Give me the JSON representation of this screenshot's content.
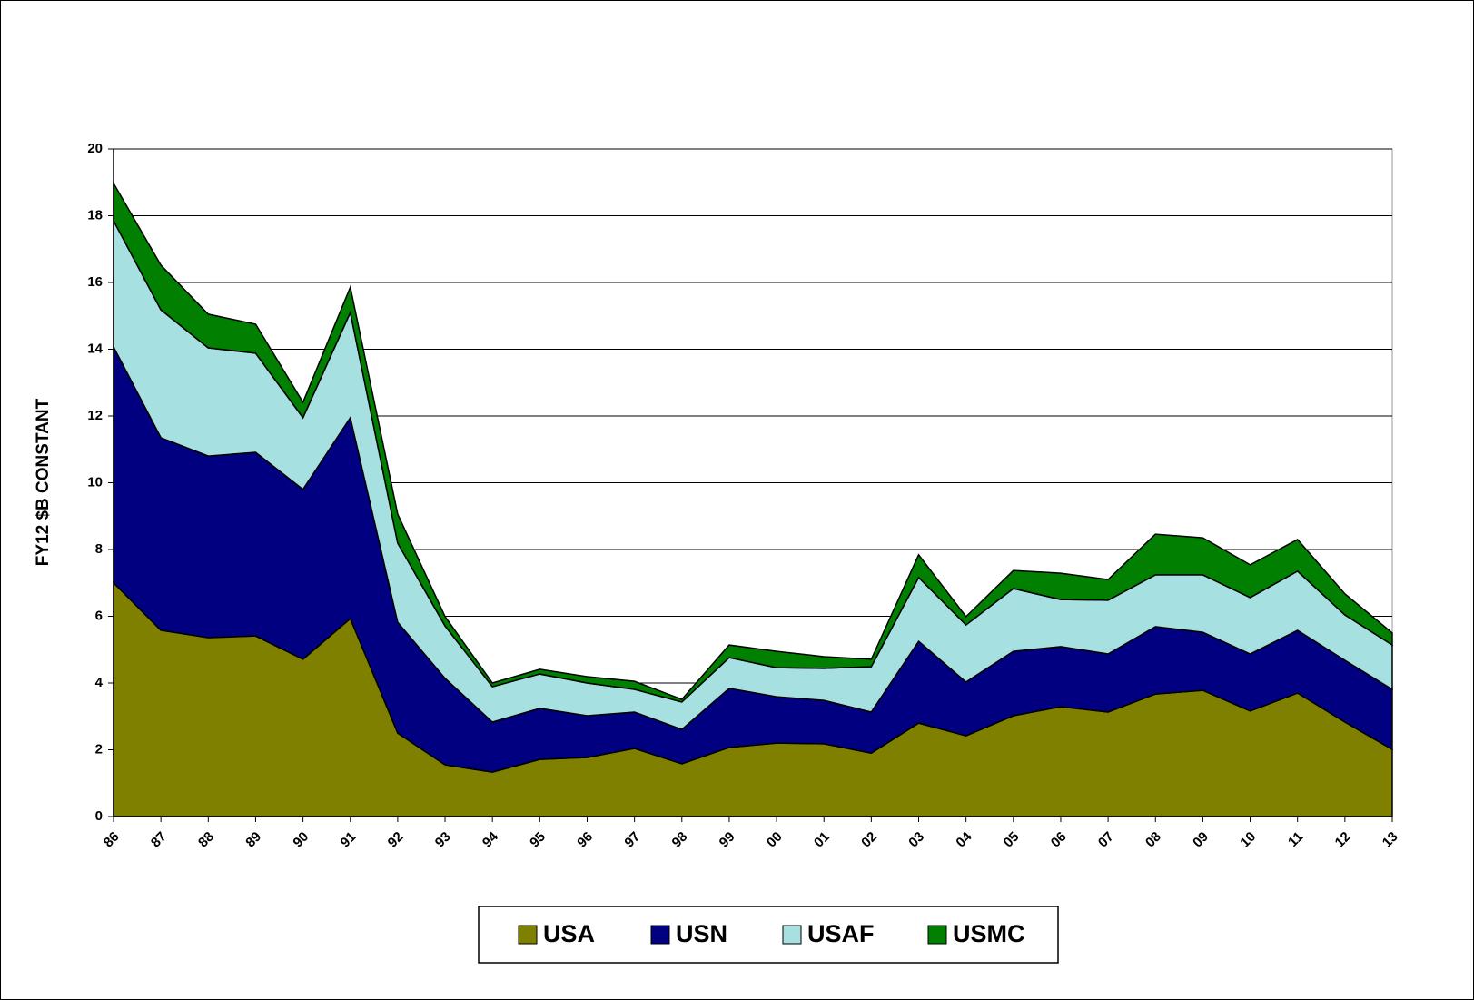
{
  "chart_data": {
    "type": "stacked-area",
    "y_label": "FY12 $B CONSTANT",
    "categories": [
      "86",
      "87",
      "88",
      "89",
      "90",
      "91",
      "92",
      "93",
      "94",
      "95",
      "96",
      "97",
      "98",
      "99",
      "00",
      "01",
      "02",
      "03",
      "04",
      "05",
      "06",
      "07",
      "08",
      "09",
      "10",
      "11",
      "12",
      "13"
    ],
    "series": [
      {
        "name": "USA",
        "color": "#808000",
        "values": [
          7.0,
          5.58,
          5.36,
          5.41,
          4.71,
          5.93,
          2.5,
          1.55,
          1.33,
          1.71,
          1.77,
          2.04,
          1.58,
          2.07,
          2.2,
          2.18,
          1.9,
          2.8,
          2.42,
          3.02,
          3.29,
          3.13,
          3.67,
          3.78,
          3.16,
          3.7,
          2.83,
          2.01
        ]
      },
      {
        "name": "USN",
        "color": "#000080",
        "values": [
          7.07,
          5.77,
          5.44,
          5.5,
          5.09,
          6.02,
          3.32,
          2.59,
          1.5,
          1.53,
          1.25,
          1.09,
          1.03,
          1.77,
          1.39,
          1.3,
          1.23,
          2.45,
          1.61,
          1.93,
          1.8,
          1.74,
          2.02,
          1.74,
          1.71,
          1.88,
          1.85,
          1.8
        ]
      },
      {
        "name": "USAF",
        "color": "#a6e0e0",
        "values": [
          3.78,
          3.83,
          3.24,
          2.97,
          2.15,
          3.15,
          2.37,
          1.57,
          1.06,
          1.03,
          0.98,
          0.68,
          0.82,
          0.92,
          0.87,
          0.96,
          1.36,
          1.91,
          1.71,
          1.88,
          1.41,
          1.61,
          1.55,
          1.72,
          1.69,
          1.77,
          1.36,
          1.33
        ]
      },
      {
        "name": "USMC",
        "color": "#007f00",
        "values": [
          1.12,
          1.34,
          1.01,
          0.87,
          0.46,
          0.76,
          0.87,
          0.28,
          0.11,
          0.14,
          0.19,
          0.24,
          0.08,
          0.38,
          0.49,
          0.35,
          0.22,
          0.68,
          0.25,
          0.54,
          0.79,
          0.62,
          1.22,
          1.11,
          0.98,
          0.95,
          0.63,
          0.36
        ]
      }
    ],
    "ylim": [
      0,
      20
    ],
    "yticks": [
      0,
      2,
      4,
      6,
      8,
      10,
      12,
      14,
      16,
      18,
      20
    ],
    "grid": true,
    "legend": "bottom"
  }
}
